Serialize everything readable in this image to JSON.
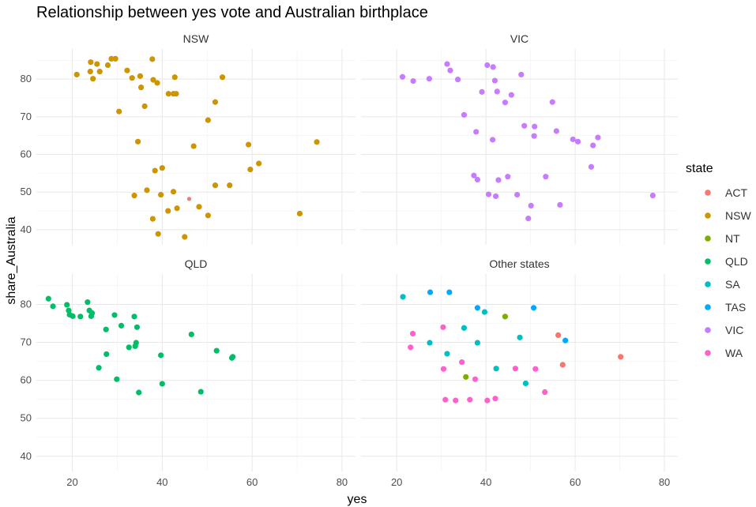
{
  "chart_data": {
    "type": "scatter",
    "title": "Relationship between yes vote and Australian birthplace",
    "xlabel": "yes",
    "ylabel": "share_Australia",
    "xlim": [
      12,
      83
    ],
    "ylim": [
      36,
      88
    ],
    "x_ticks": [
      20,
      40,
      60,
      80
    ],
    "y_ticks": [
      40,
      50,
      60,
      70,
      80
    ],
    "x_tick_labels": [
      "20",
      "40",
      "60",
      "80"
    ],
    "y_tick_labels": [
      "40",
      "50",
      "60",
      "70",
      "80"
    ],
    "grid": true,
    "legend": {
      "title": "state",
      "position": "right",
      "entries": [
        {
          "label": "ACT",
          "color": "#F8766D"
        },
        {
          "label": "NSW",
          "color": "#CD9600"
        },
        {
          "label": "NT",
          "color": "#7CAE00"
        },
        {
          "label": "QLD",
          "color": "#00BE67"
        },
        {
          "label": "SA",
          "color": "#00BFC4"
        },
        {
          "label": "TAS",
          "color": "#00A9FF"
        },
        {
          "label": "VIC",
          "color": "#C77CFF"
        },
        {
          "label": "WA",
          "color": "#FF61CC"
        }
      ]
    },
    "panels": [
      {
        "title": "NSW",
        "points": [
          {
            "s": "NSW",
            "x": 21,
            "y": 81.2
          },
          {
            "s": "NSW",
            "x": 24.1,
            "y": 84.5
          },
          {
            "s": "NSW",
            "x": 24.0,
            "y": 82.0
          },
          {
            "s": "NSW",
            "x": 24.6,
            "y": 80.1
          },
          {
            "s": "NSW",
            "x": 25.5,
            "y": 84.0
          },
          {
            "s": "NSW",
            "x": 26.1,
            "y": 82.0
          },
          {
            "s": "NSW",
            "x": 27.9,
            "y": 83.7
          },
          {
            "s": "NSW",
            "x": 28.7,
            "y": 85.4
          },
          {
            "s": "NSW",
            "x": 29.6,
            "y": 85.4
          },
          {
            "s": "NSW",
            "x": 30.4,
            "y": 71.4
          },
          {
            "s": "NSW",
            "x": 32.2,
            "y": 82.3
          },
          {
            "s": "NSW",
            "x": 33.3,
            "y": 80.3
          },
          {
            "s": "NSW",
            "x": 35.1,
            "y": 80.8
          },
          {
            "s": "NSW",
            "x": 35.3,
            "y": 77.8
          },
          {
            "s": "NSW",
            "x": 36.1,
            "y": 72.8
          },
          {
            "s": "NSW",
            "x": 37.8,
            "y": 85.3
          },
          {
            "s": "NSW",
            "x": 38.0,
            "y": 79.8
          },
          {
            "s": "NSW",
            "x": 38.9,
            "y": 79.0
          },
          {
            "s": "NSW",
            "x": 41.4,
            "y": 76.1
          },
          {
            "s": "NSW",
            "x": 42.5,
            "y": 76.1
          },
          {
            "s": "NSW",
            "x": 42.8,
            "y": 80.5
          },
          {
            "s": "NSW",
            "x": 43.1,
            "y": 76.1
          },
          {
            "s": "NSW",
            "x": 34.6,
            "y": 63.4
          },
          {
            "s": "NSW",
            "x": 33.8,
            "y": 49.1
          },
          {
            "s": "NSW",
            "x": 36.6,
            "y": 50.5
          },
          {
            "s": "NSW",
            "x": 37.9,
            "y": 42.9
          },
          {
            "s": "NSW",
            "x": 38.4,
            "y": 55.7
          },
          {
            "s": "NSW",
            "x": 39.1,
            "y": 38.9
          },
          {
            "s": "NSW",
            "x": 39.7,
            "y": 49.3
          },
          {
            "s": "NSW",
            "x": 40.0,
            "y": 56.4
          },
          {
            "s": "NSW",
            "x": 41.3,
            "y": 45.0
          },
          {
            "s": "NSW",
            "x": 42.5,
            "y": 50.1
          },
          {
            "s": "NSW",
            "x": 43.3,
            "y": 45.7
          },
          {
            "s": "NSW",
            "x": 45.0,
            "y": 38.1
          },
          {
            "s": "NSW",
            "x": 47.0,
            "y": 62.2
          },
          {
            "s": "NSW",
            "x": 48.2,
            "y": 46.1
          },
          {
            "s": "NSW",
            "x": 50.2,
            "y": 69.1
          },
          {
            "s": "NSW",
            "x": 50.2,
            "y": 43.8
          },
          {
            "s": "NSW",
            "x": 51.8,
            "y": 73.9
          },
          {
            "s": "NSW",
            "x": 51.8,
            "y": 51.8
          },
          {
            "s": "NSW",
            "x": 53.4,
            "y": 80.5
          },
          {
            "s": "NSW",
            "x": 55.0,
            "y": 51.8
          },
          {
            "s": "NSW",
            "x": 59.2,
            "y": 62.6
          },
          {
            "s": "NSW",
            "x": 59.6,
            "y": 56.0
          },
          {
            "s": "NSW",
            "x": 61.5,
            "y": 57.6
          },
          {
            "s": "NSW",
            "x": 70.6,
            "y": 44.3
          },
          {
            "s": "NSW",
            "x": 74.4,
            "y": 63.3
          },
          {
            "s": "ACT",
            "x": 46.0,
            "y": 48.2,
            "small": true
          }
        ]
      },
      {
        "title": "VIC",
        "points": [
          {
            "s": "VIC",
            "x": 21.3,
            "y": 80.6
          },
          {
            "s": "VIC",
            "x": 23.7,
            "y": 79.5
          },
          {
            "s": "VIC",
            "x": 27.3,
            "y": 80.1
          },
          {
            "s": "VIC",
            "x": 31.3,
            "y": 84.0
          },
          {
            "s": "VIC",
            "x": 32.0,
            "y": 82.3
          },
          {
            "s": "VIC",
            "x": 33.7,
            "y": 79.9
          },
          {
            "s": "VIC",
            "x": 35.1,
            "y": 70.5
          },
          {
            "s": "VIC",
            "x": 37.3,
            "y": 54.4
          },
          {
            "s": "VIC",
            "x": 37.8,
            "y": 66.0
          },
          {
            "s": "VIC",
            "x": 38.1,
            "y": 53.3
          },
          {
            "s": "VIC",
            "x": 39.1,
            "y": 76.6
          },
          {
            "s": "VIC",
            "x": 40.3,
            "y": 83.7
          },
          {
            "s": "VIC",
            "x": 40.6,
            "y": 49.4
          },
          {
            "s": "VIC",
            "x": 41.6,
            "y": 83.2
          },
          {
            "s": "VIC",
            "x": 41.5,
            "y": 63.9
          },
          {
            "s": "VIC",
            "x": 42.0,
            "y": 79.6
          },
          {
            "s": "VIC",
            "x": 42.2,
            "y": 48.9
          },
          {
            "s": "VIC",
            "x": 42.5,
            "y": 76.7
          },
          {
            "s": "VIC",
            "x": 42.8,
            "y": 53.2
          },
          {
            "s": "VIC",
            "x": 44.3,
            "y": 73.8
          },
          {
            "s": "VIC",
            "x": 44.9,
            "y": 54.1
          },
          {
            "s": "VIC",
            "x": 45.7,
            "y": 75.8
          },
          {
            "s": "VIC",
            "x": 47.0,
            "y": 49.3
          },
          {
            "s": "VIC",
            "x": 47.9,
            "y": 81.2
          },
          {
            "s": "VIC",
            "x": 48.6,
            "y": 67.6
          },
          {
            "s": "VIC",
            "x": 49.5,
            "y": 43.0
          },
          {
            "s": "VIC",
            "x": 50.1,
            "y": 46.4
          },
          {
            "s": "VIC",
            "x": 50.8,
            "y": 64.9
          },
          {
            "s": "VIC",
            "x": 50.9,
            "y": 67.4
          },
          {
            "s": "VIC",
            "x": 53.4,
            "y": 54.1
          },
          {
            "s": "VIC",
            "x": 54.9,
            "y": 73.9
          },
          {
            "s": "VIC",
            "x": 55.8,
            "y": 66.2
          },
          {
            "s": "VIC",
            "x": 56.6,
            "y": 46.6
          },
          {
            "s": "VIC",
            "x": 59.5,
            "y": 64.0
          },
          {
            "s": "VIC",
            "x": 60.6,
            "y": 63.4
          },
          {
            "s": "VIC",
            "x": 63.6,
            "y": 56.7
          },
          {
            "s": "VIC",
            "x": 64.0,
            "y": 62.4
          },
          {
            "s": "VIC",
            "x": 65.1,
            "y": 64.5
          },
          {
            "s": "VIC",
            "x": 77.4,
            "y": 49.1
          }
        ]
      },
      {
        "title": "QLD",
        "points": [
          {
            "s": "QLD",
            "x": 14.7,
            "y": 81.5
          },
          {
            "s": "QLD",
            "x": 15.7,
            "y": 79.5
          },
          {
            "s": "QLD",
            "x": 18.8,
            "y": 79.9
          },
          {
            "s": "QLD",
            "x": 19.2,
            "y": 78.4
          },
          {
            "s": "QLD",
            "x": 19.4,
            "y": 77.3
          },
          {
            "s": "QLD",
            "x": 20.1,
            "y": 76.9
          },
          {
            "s": "QLD",
            "x": 21.8,
            "y": 76.8
          },
          {
            "s": "QLD",
            "x": 23.4,
            "y": 80.6
          },
          {
            "s": "QLD",
            "x": 23.8,
            "y": 78.4
          },
          {
            "s": "QLD",
            "x": 24.2,
            "y": 76.9
          },
          {
            "s": "QLD",
            "x": 24.4,
            "y": 77.7
          },
          {
            "s": "QLD",
            "x": 25.9,
            "y": 63.3
          },
          {
            "s": "QLD",
            "x": 27.5,
            "y": 73.4
          },
          {
            "s": "QLD",
            "x": 27.6,
            "y": 66.9
          },
          {
            "s": "QLD",
            "x": 29.4,
            "y": 77.2
          },
          {
            "s": "QLD",
            "x": 29.9,
            "y": 60.3
          },
          {
            "s": "QLD",
            "x": 30.9,
            "y": 74.4
          },
          {
            "s": "QLD",
            "x": 32.6,
            "y": 68.7
          },
          {
            "s": "QLD",
            "x": 33.8,
            "y": 76.8
          },
          {
            "s": "QLD",
            "x": 34.0,
            "y": 69.0
          },
          {
            "s": "QLD",
            "x": 34.2,
            "y": 69.9
          },
          {
            "s": "QLD",
            "x": 34.4,
            "y": 74.0
          },
          {
            "s": "QLD",
            "x": 34.8,
            "y": 56.8
          },
          {
            "s": "QLD",
            "x": 39.7,
            "y": 66.6
          },
          {
            "s": "QLD",
            "x": 40.0,
            "y": 59.1
          },
          {
            "s": "QLD",
            "x": 46.5,
            "y": 72.1
          },
          {
            "s": "QLD",
            "x": 48.6,
            "y": 57.0
          },
          {
            "s": "QLD",
            "x": 52.1,
            "y": 67.8
          },
          {
            "s": "QLD",
            "x": 55.5,
            "y": 65.9
          },
          {
            "s": "QLD",
            "x": 55.7,
            "y": 66.2
          }
        ]
      },
      {
        "title": "Other states",
        "points": [
          {
            "s": "SA",
            "x": 21.4,
            "y": 82.0
          },
          {
            "s": "TAS",
            "x": 27.5,
            "y": 83.2
          },
          {
            "s": "SA",
            "x": 27.4,
            "y": 69.9
          },
          {
            "s": "SA",
            "x": 31.3,
            "y": 67.0
          },
          {
            "s": "TAS",
            "x": 31.8,
            "y": 83.2
          },
          {
            "s": "SA",
            "x": 35.1,
            "y": 73.8
          },
          {
            "s": "TAS",
            "x": 38.1,
            "y": 79.1
          },
          {
            "s": "SA",
            "x": 38.1,
            "y": 69.9
          },
          {
            "s": "SA",
            "x": 39.7,
            "y": 78.0
          },
          {
            "s": "SA",
            "x": 42.3,
            "y": 63.1
          },
          {
            "s": "SA",
            "x": 47.6,
            "y": 71.3
          },
          {
            "s": "SA",
            "x": 48.9,
            "y": 59.2
          },
          {
            "s": "TAS",
            "x": 50.7,
            "y": 79.1
          },
          {
            "s": "TAS",
            "x": 57.8,
            "y": 70.5
          },
          {
            "s": "NT",
            "x": 44.3,
            "y": 76.8
          },
          {
            "s": "NT",
            "x": 35.5,
            "y": 60.9
          },
          {
            "s": "WA",
            "x": 23.1,
            "y": 68.7
          },
          {
            "s": "WA",
            "x": 23.6,
            "y": 72.3
          },
          {
            "s": "WA",
            "x": 30.4,
            "y": 74.0
          },
          {
            "s": "WA",
            "x": 30.5,
            "y": 63.0
          },
          {
            "s": "WA",
            "x": 30.9,
            "y": 54.9
          },
          {
            "s": "WA",
            "x": 33.2,
            "y": 54.7
          },
          {
            "s": "WA",
            "x": 34.6,
            "y": 64.8
          },
          {
            "s": "WA",
            "x": 36.4,
            "y": 54.9
          },
          {
            "s": "WA",
            "x": 37.6,
            "y": 60.3
          },
          {
            "s": "WA",
            "x": 40.3,
            "y": 54.7
          },
          {
            "s": "WA",
            "x": 42.1,
            "y": 55.2
          },
          {
            "s": "WA",
            "x": 46.6,
            "y": 63.1
          },
          {
            "s": "WA",
            "x": 51.1,
            "y": 63.0
          },
          {
            "s": "WA",
            "x": 53.2,
            "y": 56.9
          },
          {
            "s": "ACT",
            "x": 56.2,
            "y": 71.9
          },
          {
            "s": "ACT",
            "x": 57.2,
            "y": 64.1
          },
          {
            "s": "ACT",
            "x": 70.2,
            "y": 66.2
          }
        ]
      }
    ]
  }
}
